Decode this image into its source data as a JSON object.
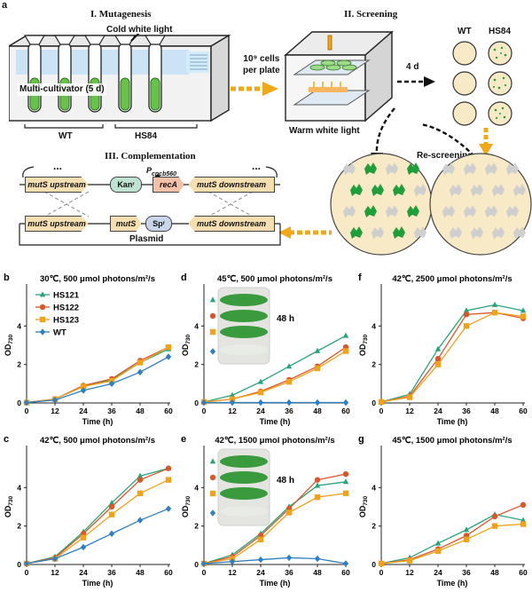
{
  "panel_a": {
    "letter": "a",
    "mutagenesis": {
      "title": "I. Mutagenesis",
      "light": "Cold white light",
      "cultivator": "Multi-cultivator (5 d)",
      "wt": "WT",
      "hs84": "HS84"
    },
    "arrow_cells": "10⁹ cells per plate",
    "arrow_cells_line1": "10⁹ cells",
    "arrow_cells_line2": "per plate",
    "screening": {
      "title": "II. Screening",
      "light": "Warm white  light",
      "days": "4 d",
      "wt": "WT",
      "hs84": "HS84"
    },
    "rescreening": "Re-screening",
    "complementation": {
      "title": "III. Complementation",
      "promoter": "P",
      "promoter_sub": "cpcb560",
      "genome": [
        "mutS upstream",
        "Kan",
        "r",
        "recA",
        "mutS downstream"
      ],
      "plasmid": [
        "mutS upstream",
        "mutS",
        "Sp",
        "r",
        "mutS downstream"
      ],
      "plasmid_label": "Plasmid",
      "dots": "..."
    },
    "colors": {
      "arrow_orange": "#f0a818",
      "green": "#1f9e3a",
      "plate": "#f8e9c7",
      "gene_fill": "#f5dfb0",
      "kan": "#bfe3d3",
      "reca": "#f3c0a8",
      "spr": "#c9d6ea"
    }
  },
  "chart_data": [
    {
      "letter": "b",
      "type": "line",
      "title": "30℃, 500 μmol photons/m²/s",
      "xlabel": "Time (h)",
      "ylabel": "OD",
      "ylabel_sub": "730",
      "x": [
        0,
        12,
        24,
        36,
        48,
        60
      ],
      "xlim": [
        0,
        60
      ],
      "ylim": [
        0,
        6
      ],
      "xticks": [
        "0",
        "12",
        "24",
        "36",
        "48",
        "60"
      ],
      "yticks": [
        "0",
        "2",
        "4"
      ],
      "legend": [
        "HS121",
        "HS122",
        "HS123",
        "WT"
      ],
      "series": [
        {
          "name": "HS121",
          "values": [
            0.02,
            0.2,
            0.9,
            1.2,
            2.1,
            2.8
          ]
        },
        {
          "name": "HS122",
          "values": [
            0.02,
            0.2,
            0.9,
            1.25,
            2.2,
            2.9
          ]
        },
        {
          "name": "HS123",
          "values": [
            0.02,
            0.2,
            0.85,
            1.15,
            2.1,
            2.9
          ]
        },
        {
          "name": "WT",
          "values": [
            0.02,
            0.15,
            0.65,
            1.0,
            1.6,
            2.4
          ]
        }
      ]
    },
    {
      "letter": "d",
      "type": "line",
      "title": "45℃, 500 μmol photons/m²/s",
      "xlabel": "Time (h)",
      "ylabel": "OD",
      "ylabel_sub": "730",
      "x": [
        0,
        12,
        24,
        36,
        48,
        60
      ],
      "xlim": [
        0,
        60
      ],
      "ylim": [
        0,
        6
      ],
      "xticks": [
        "0",
        "12",
        "24",
        "36",
        "48",
        "60"
      ],
      "yticks": [
        "0",
        "2",
        "4"
      ],
      "inset_label": "48 h",
      "series": [
        {
          "name": "HS121",
          "values": [
            0.05,
            0.4,
            1.1,
            1.9,
            2.7,
            3.5
          ]
        },
        {
          "name": "HS122",
          "values": [
            0.05,
            0.2,
            0.6,
            1.2,
            1.9,
            2.9
          ]
        },
        {
          "name": "HS123",
          "values": [
            0.05,
            0.2,
            0.55,
            1.1,
            1.8,
            2.7
          ]
        },
        {
          "name": "WT",
          "values": [
            0.02,
            0.02,
            0.02,
            0.02,
            0.02,
            0.02
          ]
        }
      ]
    },
    {
      "letter": "f",
      "type": "line",
      "title": "42℃, 2500 μmol photons/m²/s",
      "xlabel": "Time (h)",
      "ylabel": "OD",
      "ylabel_sub": "730",
      "x": [
        0,
        12,
        24,
        36,
        48,
        60
      ],
      "xlim": [
        0,
        60
      ],
      "ylim": [
        0,
        6
      ],
      "xticks": [
        "0",
        "12",
        "24",
        "36",
        "48",
        "60"
      ],
      "yticks": [
        "0",
        "2",
        "4"
      ],
      "series": [
        {
          "name": "HS121",
          "values": [
            0.05,
            0.45,
            2.8,
            4.8,
            5.1,
            4.8
          ]
        },
        {
          "name": "HS122",
          "values": [
            0.05,
            0.35,
            2.3,
            4.6,
            4.7,
            4.4
          ]
        },
        {
          "name": "HS123",
          "values": [
            0.05,
            0.3,
            2.0,
            4.0,
            4.7,
            4.5
          ]
        }
      ]
    },
    {
      "letter": "c",
      "type": "line",
      "title": "42℃, 500 μmol photons/m²/s",
      "xlabel": "Time (h)",
      "ylabel": "OD",
      "ylabel_sub": "730",
      "x": [
        0,
        12,
        24,
        36,
        48,
        60
      ],
      "xlim": [
        0,
        60
      ],
      "ylim": [
        0,
        6
      ],
      "xticks": [
        "0",
        "12",
        "24",
        "36",
        "48",
        "60"
      ],
      "yticks": [
        "0",
        "2",
        "4"
      ],
      "series": [
        {
          "name": "HS121",
          "values": [
            0.05,
            0.4,
            1.7,
            3.2,
            4.6,
            5.0
          ]
        },
        {
          "name": "HS122",
          "values": [
            0.05,
            0.35,
            1.6,
            3.0,
            4.4,
            5.0
          ]
        },
        {
          "name": "HS123",
          "values": [
            0.05,
            0.3,
            1.4,
            2.6,
            3.7,
            4.4
          ]
        },
        {
          "name": "WT",
          "values": [
            0.05,
            0.3,
            0.9,
            1.6,
            2.3,
            2.9
          ]
        }
      ]
    },
    {
      "letter": "e",
      "type": "line",
      "title": "42℃, 1500 μmol photons/m²/s",
      "xlabel": "Time (h)",
      "ylabel": "OD",
      "ylabel_sub": "730",
      "x": [
        0,
        12,
        24,
        36,
        48,
        60
      ],
      "xlim": [
        0,
        60
      ],
      "ylim": [
        0,
        6
      ],
      "xticks": [
        "0",
        "12",
        "24",
        "36",
        "48",
        "60"
      ],
      "yticks": [
        "0",
        "2",
        "4"
      ],
      "inset_label": "48 h",
      "series": [
        {
          "name": "HS121",
          "values": [
            0.05,
            0.5,
            1.6,
            3.0,
            4.1,
            4.3
          ]
        },
        {
          "name": "HS122",
          "values": [
            0.05,
            0.4,
            1.5,
            2.9,
            4.4,
            4.7
          ]
        },
        {
          "name": "HS123",
          "values": [
            0.05,
            0.3,
            1.3,
            2.7,
            3.5,
            3.7
          ]
        },
        {
          "name": "WT",
          "values": [
            0.05,
            0.15,
            0.25,
            0.35,
            0.3,
            0.05
          ]
        }
      ]
    },
    {
      "letter": "g",
      "type": "line",
      "title": "45℃, 1500 μmol photons/m²/s",
      "xlabel": "Time (h)",
      "ylabel": "OD",
      "ylabel_sub": "730",
      "x": [
        0,
        12,
        24,
        36,
        48,
        60
      ],
      "xlim": [
        0,
        60
      ],
      "ylim": [
        0,
        6
      ],
      "xticks": [
        "0",
        "12",
        "24",
        "36",
        "48",
        "60"
      ],
      "yticks": [
        "0",
        "2",
        "4"
      ],
      "series": [
        {
          "name": "HS121",
          "values": [
            0.05,
            0.35,
            1.1,
            1.8,
            2.6,
            2.3
          ]
        },
        {
          "name": "HS122",
          "values": [
            0.05,
            0.25,
            0.8,
            1.5,
            2.5,
            3.1
          ]
        },
        {
          "name": "HS123",
          "values": [
            0.05,
            0.2,
            0.7,
            1.3,
            2.0,
            2.1
          ]
        }
      ]
    }
  ],
  "series_styles": {
    "HS121": {
      "color": "#2aa37a",
      "marker": "triangle"
    },
    "HS122": {
      "color": "#d9562a",
      "marker": "circle"
    },
    "HS123": {
      "color": "#f0a21c",
      "marker": "square"
    },
    "WT": {
      "color": "#2f7fc1",
      "marker": "diamond"
    }
  }
}
